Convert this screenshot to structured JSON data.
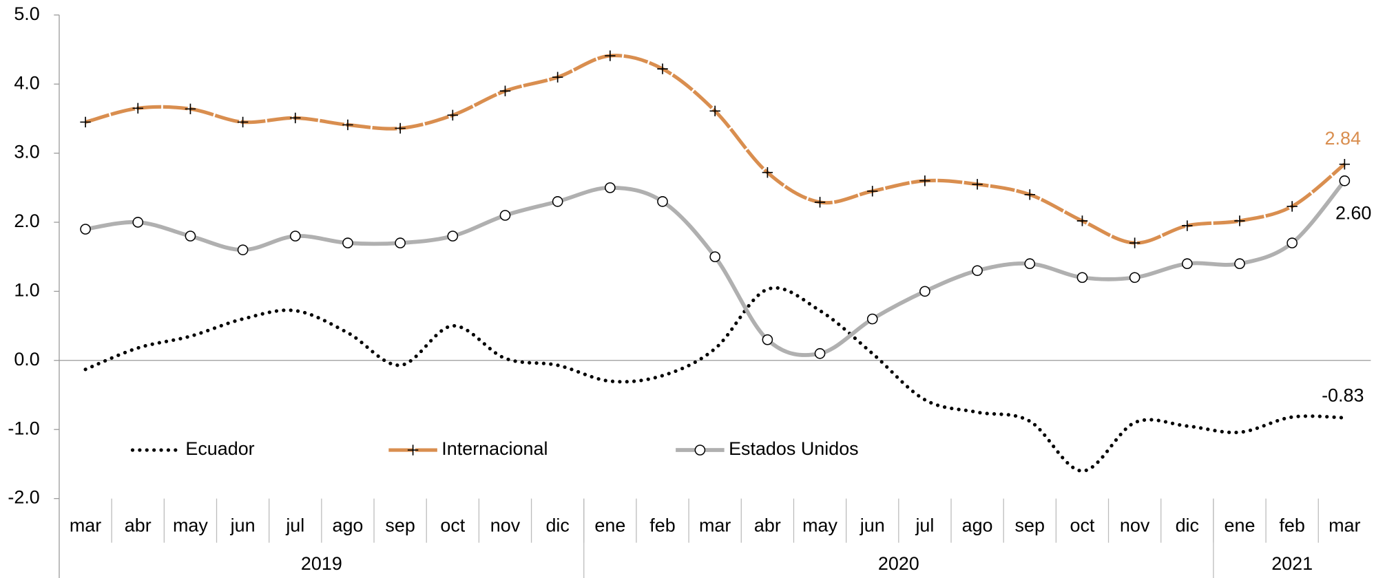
{
  "chart_data": {
    "type": "line",
    "categories": [
      "mar",
      "abr",
      "may",
      "jun",
      "jul",
      "ago",
      "sep",
      "oct",
      "nov",
      "dic",
      "ene",
      "feb",
      "mar",
      "abr",
      "may",
      "jun",
      "jul",
      "ago",
      "sep",
      "oct",
      "nov",
      "dic",
      "ene",
      "feb",
      "mar"
    ],
    "category_groups": [
      {
        "label": "2019",
        "count": 10
      },
      {
        "label": "2020",
        "count": 12
      },
      {
        "label": "2021",
        "count": 3
      }
    ],
    "series": [
      {
        "name": "Ecuador",
        "color": "#000000",
        "style": "dotted",
        "values": [
          -0.13,
          0.18,
          0.35,
          0.6,
          0.72,
          0.4,
          -0.07,
          0.5,
          0.03,
          -0.07,
          -0.3,
          -0.22,
          0.17,
          1.03,
          0.72,
          0.1,
          -0.57,
          -0.75,
          -0.88,
          -1.6,
          -0.9,
          -0.95,
          -1.04,
          -0.82,
          -0.83
        ],
        "value_labels": [
          null,
          null,
          null,
          null,
          null,
          null,
          null,
          null,
          null,
          null,
          null,
          null,
          null,
          null,
          null,
          null,
          null,
          null,
          null,
          null,
          null,
          null,
          null,
          null,
          "-0.83"
        ]
      },
      {
        "name": "Internacional",
        "color": "#D98E4F",
        "style": "dashed-plus",
        "values": [
          3.45,
          3.65,
          3.64,
          3.45,
          3.51,
          3.41,
          3.36,
          3.55,
          3.9,
          4.1,
          4.41,
          4.22,
          3.61,
          2.72,
          2.29,
          2.45,
          2.6,
          2.55,
          2.4,
          2.02,
          1.7,
          1.95,
          2.02,
          2.23,
          2.84
        ],
        "value_labels": [
          null,
          null,
          null,
          null,
          null,
          null,
          null,
          null,
          null,
          null,
          null,
          null,
          null,
          null,
          null,
          null,
          null,
          null,
          null,
          null,
          null,
          null,
          null,
          null,
          "2.84"
        ]
      },
      {
        "name": "Estados Unidos",
        "color": "#B0B0B0",
        "style": "circle",
        "values": [
          1.9,
          2.0,
          1.8,
          1.6,
          1.8,
          1.7,
          1.7,
          1.8,
          2.1,
          2.3,
          2.5,
          2.3,
          1.5,
          0.3,
          0.1,
          0.6,
          1.0,
          1.3,
          1.4,
          1.2,
          1.2,
          1.4,
          1.4,
          1.7,
          2.6
        ],
        "value_labels": [
          null,
          null,
          null,
          null,
          null,
          null,
          null,
          null,
          null,
          null,
          null,
          null,
          null,
          null,
          null,
          null,
          null,
          null,
          null,
          null,
          null,
          null,
          null,
          null,
          "2.60"
        ]
      }
    ],
    "ylim": [
      -2,
      5
    ],
    "yticks": [
      {
        "value": -2,
        "label": "-2.0"
      },
      {
        "value": -1,
        "label": "-1.0"
      },
      {
        "value": 0,
        "label": "0.0"
      },
      {
        "value": 1,
        "label": "1.0"
      },
      {
        "value": 2,
        "label": "2.0"
      },
      {
        "value": 3,
        "label": "3.0"
      },
      {
        "value": 4,
        "label": "4.0"
      },
      {
        "value": 5,
        "label": "5.0"
      }
    ],
    "legend": "lower-left"
  }
}
